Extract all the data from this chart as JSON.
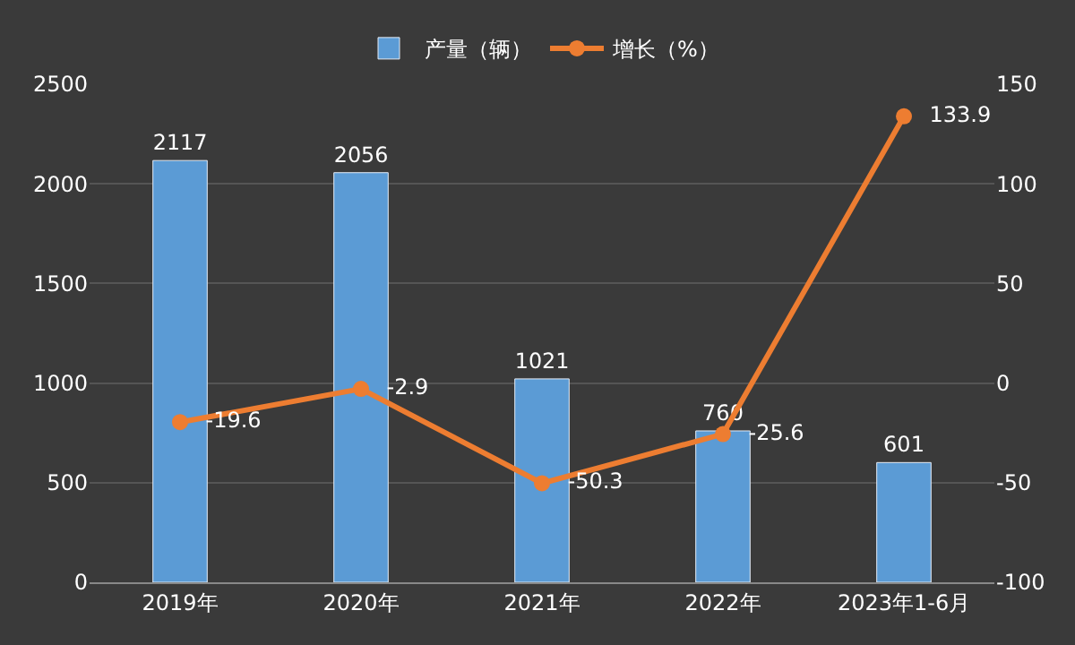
{
  "chart_data": {
    "type": "bar",
    "categories": [
      "2019年",
      "2020年",
      "2021年",
      "2022年",
      "2023年1-6月"
    ],
    "series": [
      {
        "name": "产量（辆）",
        "color": "#5b9bd5",
        "values": [
          2117,
          2056,
          1021,
          760,
          601
        ]
      },
      {
        "name": "增长（%）",
        "type": "line",
        "axis": "y2",
        "color": "#ed7d31",
        "marker": "circle",
        "values": [
          -19.6,
          -2.9,
          -50.3,
          -25.6,
          133.9
        ]
      }
    ],
    "ylim": [
      0,
      2500
    ],
    "yticks": [
      0,
      500,
      1000,
      1500,
      2000,
      2500
    ],
    "y2lim": [
      -100,
      150
    ],
    "y2ticks": [
      -100,
      -50,
      0,
      50,
      100,
      150
    ],
    "grid": "y",
    "legend": "top",
    "data_labels": true
  }
}
